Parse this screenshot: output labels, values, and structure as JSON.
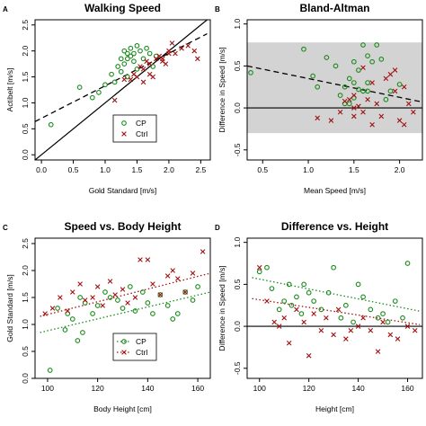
{
  "colors": {
    "cp": "#1a8a1a",
    "ctrl": "#a01010",
    "band": "#d3d3d3"
  },
  "chart_data": [
    {
      "type": "scatter",
      "letter": "A",
      "title": "Walking Speed",
      "xlabel": "Gold Standard [m/s]",
      "ylabel": "Actibelt [m/s]",
      "xlim": [
        -0.1,
        2.65
      ],
      "ylim": [
        -0.1,
        2.6
      ],
      "xticks": [
        0.0,
        0.5,
        1.0,
        1.5,
        2.0,
        2.5
      ],
      "yticks": [
        0.0,
        0.5,
        1.0,
        1.5,
        2.0,
        2.5
      ],
      "tick_labels_x": [
        "0.0",
        "0.5",
        "1.0",
        "1.5",
        "2.0",
        "2.5"
      ],
      "tick_labels_y": [
        "0.0",
        "0.5",
        "1.0",
        "1.5",
        "2.0",
        "2.5"
      ],
      "legend": {
        "position": "bottom-right",
        "entries": [
          "CP",
          "Ctrl"
        ]
      },
      "lines": [
        {
          "x": [
            -0.1,
            2.6
          ],
          "y": [
            -0.1,
            2.6
          ],
          "style": "solid"
        },
        {
          "x": [
            -0.1,
            2.6
          ],
          "y": [
            0.64,
            2.33
          ],
          "style": "dashed"
        }
      ],
      "series": [
        {
          "name": "CP",
          "marker": "circle",
          "x": [
            0.15,
            0.6,
            0.8,
            0.9,
            1.0,
            1.1,
            1.15,
            1.2,
            1.25,
            1.25,
            1.3,
            1.3,
            1.35,
            1.35,
            1.4,
            1.4,
            1.45,
            1.45,
            1.5,
            1.55,
            1.6,
            1.65,
            1.7,
            1.75,
            1.8,
            1.35,
            1.5
          ],
          "y": [
            0.58,
            1.3,
            1.1,
            1.2,
            1.35,
            1.55,
            1.4,
            1.7,
            1.85,
            1.6,
            2.0,
            1.75,
            1.95,
            1.85,
            2.05,
            1.9,
            1.95,
            1.8,
            2.1,
            2.0,
            1.85,
            2.05,
            1.95,
            1.7,
            1.9,
            1.5,
            1.65
          ]
        },
        {
          "name": "Ctrl",
          "marker": "x",
          "x": [
            1.15,
            1.3,
            1.4,
            1.45,
            1.5,
            1.55,
            1.6,
            1.65,
            1.7,
            1.75,
            1.8,
            1.85,
            1.9,
            1.95,
            2.0,
            2.05,
            2.1,
            2.2,
            2.3,
            2.4,
            2.45,
            1.6,
            1.7,
            1.9,
            2.0
          ],
          "y": [
            1.05,
            1.45,
            1.45,
            1.55,
            1.5,
            1.7,
            1.65,
            1.8,
            1.75,
            1.5,
            1.85,
            1.9,
            1.8,
            1.75,
            2.0,
            2.15,
            1.95,
            2.05,
            2.1,
            2.0,
            1.85,
            1.4,
            1.55,
            1.85,
            1.95
          ]
        }
      ]
    },
    {
      "type": "scatter",
      "letter": "B",
      "title": "Bland-Altman",
      "xlabel": "Mean Speed [m/s]",
      "ylabel": "Difference in Speed [m/s]",
      "xlim": [
        0.33,
        2.25
      ],
      "ylim": [
        -0.62,
        1.05
      ],
      "xticks": [
        0.5,
        1.0,
        1.5,
        2.0
      ],
      "yticks": [
        -0.5,
        0.0,
        0.5,
        1.0
      ],
      "tick_labels_x": [
        "0.5",
        "1.0",
        "1.5",
        "2.0"
      ],
      "tick_labels_y": [
        "-0.5",
        "0.0",
        "0.5",
        "1.0"
      ],
      "band": [
        -0.3,
        0.78
      ],
      "lines": [
        {
          "x": [
            0.33,
            2.25
          ],
          "y": [
            0.0,
            0.0
          ],
          "style": "solid"
        },
        {
          "x": [
            0.33,
            2.25
          ],
          "y": [
            0.5,
            0.07
          ],
          "style": "dashed"
        }
      ],
      "series": [
        {
          "name": "CP",
          "marker": "circle",
          "x": [
            0.37,
            0.95,
            1.05,
            1.1,
            1.2,
            1.3,
            1.35,
            1.4,
            1.45,
            1.5,
            1.5,
            1.55,
            1.6,
            1.6,
            1.65,
            1.65,
            1.7,
            1.75,
            1.8,
            1.5,
            1.45,
            1.55,
            1.65,
            1.4,
            1.85,
            1.9,
            2.0
          ],
          "y": [
            0.42,
            0.7,
            0.38,
            0.25,
            0.6,
            0.5,
            0.15,
            0.25,
            0.35,
            0.55,
            0.3,
            0.45,
            0.75,
            0.2,
            0.62,
            0.3,
            0.55,
            0.75,
            0.58,
            0.12,
            0.05,
            0.22,
            0.2,
            0.05,
            0.1,
            0.2,
            0.28
          ]
        },
        {
          "name": "Ctrl",
          "marker": "x",
          "x": [
            1.1,
            1.35,
            1.4,
            1.45,
            1.5,
            1.5,
            1.55,
            1.6,
            1.65,
            1.7,
            1.75,
            1.8,
            1.85,
            1.9,
            1.95,
            2.0,
            2.05,
            2.1,
            2.15,
            1.5,
            1.6,
            1.7,
            1.25,
            1.95,
            2.05
          ],
          "y": [
            -0.12,
            -0.05,
            0.08,
            0.1,
            0.0,
            -0.1,
            0.02,
            -0.05,
            0.1,
            0.3,
            0.05,
            -0.1,
            0.35,
            0.4,
            0.2,
            -0.15,
            0.25,
            0.05,
            -0.05,
            0.15,
            0.48,
            -0.2,
            -0.15,
            0.45,
            -0.2
          ]
        }
      ]
    },
    {
      "type": "scatter",
      "letter": "C",
      "title": "Speed vs. Body Height",
      "xlabel": "Body Height  [cm]",
      "ylabel": "Gold Standard [m/s]",
      "xlim": [
        95,
        165
      ],
      "ylim": [
        0.0,
        2.6
      ],
      "xticks": [
        100,
        120,
        140,
        160
      ],
      "yticks": [
        0.0,
        0.5,
        1.0,
        1.5,
        2.0,
        2.5
      ],
      "tick_labels_x": [
        "100",
        "120",
        "140",
        "160"
      ],
      "tick_labels_y": [
        "0.0",
        "0.5",
        "1.0",
        "1.5",
        "2.0",
        "2.5"
      ],
      "legend": {
        "position": "bottom-right",
        "entries": [
          "CP",
          "Ctrl"
        ]
      },
      "lines": [
        {
          "x": [
            97,
            165
          ],
          "y": [
            0.85,
            1.6
          ],
          "style": "dotted",
          "series": "CP"
        },
        {
          "x": [
            97,
            165
          ],
          "y": [
            1.15,
            1.95
          ],
          "style": "dotted",
          "series": "Ctrl"
        }
      ],
      "series": [
        {
          "name": "CP",
          "marker": "circle",
          "x": [
            101,
            104,
            107,
            108,
            110,
            112,
            113,
            114,
            115,
            118,
            120,
            123,
            125,
            128,
            130,
            133,
            135,
            138,
            140,
            142,
            145,
            148,
            150,
            152,
            155,
            158,
            160
          ],
          "y": [
            0.15,
            1.3,
            0.9,
            1.2,
            1.1,
            0.7,
            1.5,
            0.85,
            1.4,
            1.2,
            1.35,
            1.6,
            1.5,
            1.45,
            1.3,
            1.7,
            1.25,
            1.6,
            1.4,
            1.2,
            1.55,
            1.35,
            1.1,
            1.2,
            1.6,
            1.45,
            1.7
          ]
        },
        {
          "name": "Ctrl",
          "marker": "x",
          "x": [
            99,
            102,
            105,
            108,
            110,
            113,
            115,
            118,
            120,
            122,
            125,
            127,
            130,
            132,
            135,
            137,
            140,
            142,
            145,
            148,
            150,
            152,
            155,
            158,
            162
          ],
          "y": [
            1.2,
            1.3,
            1.5,
            1.25,
            1.6,
            1.75,
            1.45,
            1.5,
            1.7,
            1.35,
            1.8,
            1.55,
            1.65,
            1.4,
            1.5,
            2.2,
            2.2,
            1.75,
            1.55,
            1.9,
            2.0,
            1.85,
            1.6,
            1.95,
            2.35
          ]
        }
      ]
    },
    {
      "type": "scatter",
      "letter": "D",
      "title": "Difference vs. Height",
      "xlabel": "Height  [cm]",
      "ylabel": "Difference in Speed [m/s]",
      "xlim": [
        95,
        166
      ],
      "ylim": [
        -0.62,
        1.05
      ],
      "xticks": [
        100,
        120,
        140,
        160
      ],
      "yticks": [
        -0.5,
        0.0,
        0.5,
        1.0
      ],
      "tick_labels_x": [
        "100",
        "120",
        "140",
        "160"
      ],
      "tick_labels_y": [
        "-0.5",
        "0.0",
        "0.5",
        "1.0"
      ],
      "lines": [
        {
          "x": [
            95,
            166
          ],
          "y": [
            0.0,
            0.0
          ],
          "style": "solid"
        },
        {
          "x": [
            97,
            165
          ],
          "y": [
            0.58,
            0.18
          ],
          "style": "dotted",
          "series": "CP"
        },
        {
          "x": [
            97,
            165
          ],
          "y": [
            0.33,
            0.02
          ],
          "style": "dotted",
          "series": "Ctrl"
        }
      ],
      "series": [
        {
          "name": "CP",
          "marker": "circle",
          "x": [
            100,
            103,
            105,
            108,
            110,
            112,
            113,
            115,
            117,
            118,
            120,
            122,
            125,
            128,
            130,
            133,
            135,
            138,
            140,
            142,
            145,
            148,
            150,
            152,
            155,
            158,
            160
          ],
          "y": [
            0.65,
            0.7,
            0.45,
            0.2,
            0.3,
            0.5,
            0.25,
            0.35,
            0.15,
            0.5,
            0.4,
            0.3,
            0.2,
            0.4,
            0.7,
            0.1,
            0.25,
            0.05,
            0.5,
            0.35,
            0.2,
            0.1,
            0.15,
            0.05,
            0.3,
            0.1,
            0.75
          ]
        },
        {
          "name": "Ctrl",
          "marker": "x",
          "x": [
            100,
            103,
            106,
            108,
            110,
            112,
            115,
            118,
            120,
            122,
            125,
            127,
            130,
            132,
            135,
            137,
            140,
            142,
            145,
            148,
            150,
            153,
            156,
            160,
            163
          ],
          "y": [
            0.7,
            0.3,
            0.05,
            0.0,
            0.1,
            -0.2,
            0.2,
            0.05,
            -0.35,
            0.15,
            -0.05,
            0.1,
            -0.1,
            0.2,
            -0.15,
            -0.05,
            0.0,
            0.1,
            -0.05,
            -0.3,
            0.05,
            -0.1,
            -0.15,
            0.0,
            -0.05
          ]
        }
      ]
    }
  ]
}
